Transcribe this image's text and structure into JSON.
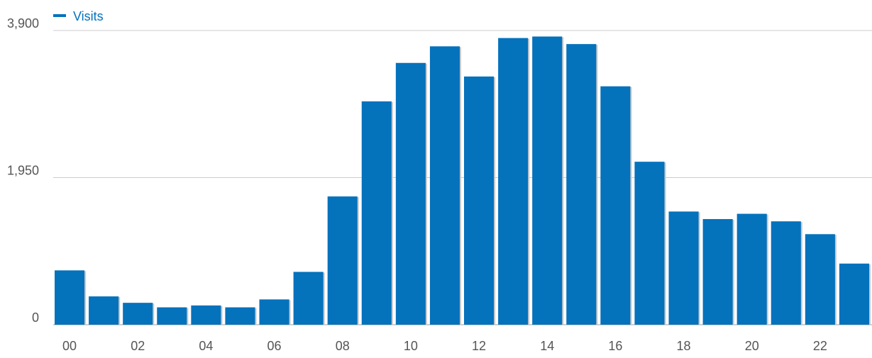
{
  "chart_data": {
    "type": "bar",
    "title": "",
    "xlabel": "",
    "ylabel": "",
    "legend": {
      "position": "top-left",
      "entries": [
        "Visits"
      ]
    },
    "categories": [
      "00",
      "01",
      "02",
      "03",
      "04",
      "05",
      "06",
      "07",
      "08",
      "09",
      "10",
      "11",
      "12",
      "13",
      "14",
      "15",
      "16",
      "17",
      "18",
      "19",
      "20",
      "21",
      "22",
      "23"
    ],
    "x_tick_labels": [
      "00",
      "02",
      "04",
      "06",
      "08",
      "10",
      "12",
      "14",
      "16",
      "18",
      "20",
      "22"
    ],
    "series": [
      {
        "name": "Visits",
        "color": "#0572bc",
        "values": [
          720,
          375,
          290,
          230,
          255,
          230,
          335,
          700,
          1700,
          2960,
          3470,
          3690,
          3290,
          3800,
          3820,
          3720,
          3160,
          2160,
          1500,
          1400,
          1470,
          1370,
          1200,
          810
        ]
      }
    ],
    "ylim": [
      0,
      3900
    ],
    "y_ticks": [
      0,
      1950,
      3900
    ],
    "y_tick_labels": [
      "0",
      "1,950",
      "3,900"
    ],
    "grid": true
  }
}
